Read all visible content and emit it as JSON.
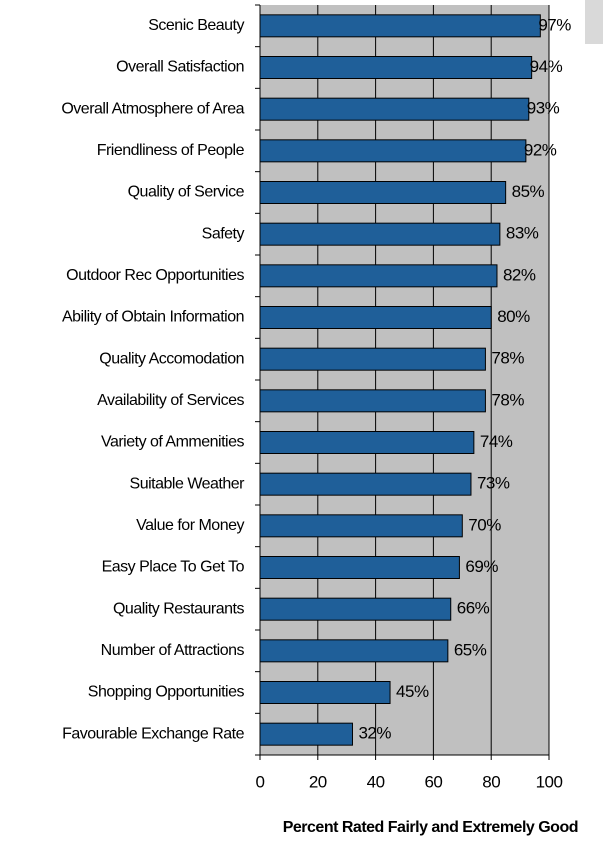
{
  "chart_data": {
    "type": "bar",
    "orientation": "horizontal",
    "x_label": "Percent Rated Fairly and Extremely Good",
    "categories": [
      "Scenic Beauty",
      "Overall Satisfaction",
      "Overall Atmosphere of Area",
      "Friendliness of People",
      "Quality of Service",
      "Safety",
      "Outdoor Rec Opportunities",
      "Ability of Obtain Information",
      "Quality Accomodation",
      "Availability of Services",
      "Variety of Ammenities",
      "Suitable Weather",
      "Value for Money",
      "Easy Place To Get To",
      "Quality Restaurants",
      "Number of Attractions",
      "Shopping Opportunities",
      "Favourable Exchange Rate"
    ],
    "values": [
      97,
      94,
      93,
      92,
      85,
      83,
      82,
      80,
      78,
      78,
      74,
      73,
      70,
      69,
      66,
      65,
      45,
      32
    ],
    "value_labels": [
      "97%",
      "94%",
      "93%",
      "92%",
      "85%",
      "83%",
      "82%",
      "80%",
      "78%",
      "78%",
      "74%",
      "73%",
      "70%",
      "69%",
      "66%",
      "65%",
      "45%",
      "32%"
    ],
    "color": "#1f5f99",
    "xlim": [
      0,
      100
    ],
    "xticks": [
      0,
      20,
      40,
      60,
      80,
      100
    ],
    "grid": true
  }
}
